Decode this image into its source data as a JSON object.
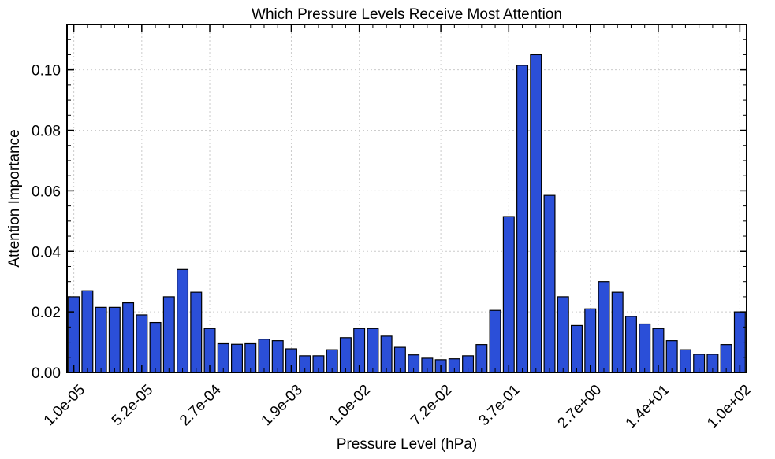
{
  "chart_data": {
    "type": "bar",
    "title": "Which Pressure Levels Receive Most Attention",
    "xlabel": "Pressure Level (hPa)",
    "ylabel": "Attention Importance",
    "ylim": [
      0,
      0.115
    ],
    "yticks": [
      "0.00",
      "0.02",
      "0.04",
      "0.06",
      "0.08",
      "0.10"
    ],
    "ytick_values": [
      0.0,
      0.02,
      0.04,
      0.06,
      0.08,
      0.1
    ],
    "xtick_labels": [
      "1.0e-05",
      "5.2e-05",
      "2.7e-04",
      "1.9e-03",
      "1.0e-02",
      "7.2e-02",
      "3.7e-01",
      "2.7e+00",
      "1.4e+01",
      "1.0e+02"
    ],
    "xtick_positions": [
      0,
      5,
      10,
      16,
      21,
      27,
      32,
      38,
      43,
      49
    ],
    "grid": true,
    "bar_color": "#2b4fd8",
    "bar_edge_color": "#000000",
    "values": [
      0.025,
      0.027,
      0.0215,
      0.0215,
      0.023,
      0.019,
      0.0165,
      0.025,
      0.034,
      0.0265,
      0.0145,
      0.0095,
      0.0093,
      0.0095,
      0.011,
      0.0105,
      0.0078,
      0.0055,
      0.0055,
      0.0075,
      0.0115,
      0.0145,
      0.0145,
      0.012,
      0.0083,
      0.0058,
      0.0047,
      0.0042,
      0.0045,
      0.0055,
      0.0092,
      0.0205,
      0.0515,
      0.1015,
      0.105,
      0.0585,
      0.025,
      0.0155,
      0.021,
      0.03,
      0.0265,
      0.0185,
      0.016,
      0.0145,
      0.0105,
      0.0075,
      0.006,
      0.006,
      0.0092,
      0.02
    ]
  }
}
